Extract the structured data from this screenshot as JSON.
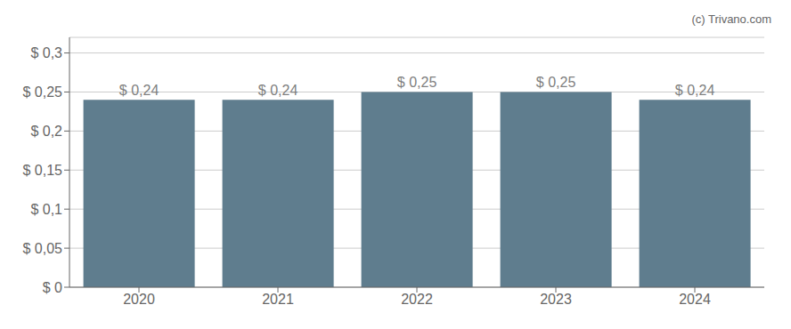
{
  "chart_data": {
    "type": "bar",
    "categories": [
      "2020",
      "2021",
      "2022",
      "2023",
      "2024"
    ],
    "values": [
      0.24,
      0.24,
      0.25,
      0.25,
      0.24
    ],
    "value_labels": [
      "$ 0,24",
      "$ 0,24",
      "$ 0,25",
      "$ 0,25",
      "$ 0,24"
    ],
    "data_labels": true,
    "color": "#5f7d8e",
    "ylim": [
      0,
      0.32
    ],
    "yticks": [
      {
        "value": 0,
        "label": "$ 0"
      },
      {
        "value": 0.05,
        "label": "$ 0,05"
      },
      {
        "value": 0.1,
        "label": "$ 0,1"
      },
      {
        "value": 0.15,
        "label": "$ 0,15"
      },
      {
        "value": 0.2,
        "label": "$ 0,2"
      },
      {
        "value": 0.25,
        "label": "$ 0,25"
      },
      {
        "value": 0.3,
        "label": "$ 0,3"
      }
    ],
    "grid": true,
    "annotation": "(c) Trivano.com"
  }
}
